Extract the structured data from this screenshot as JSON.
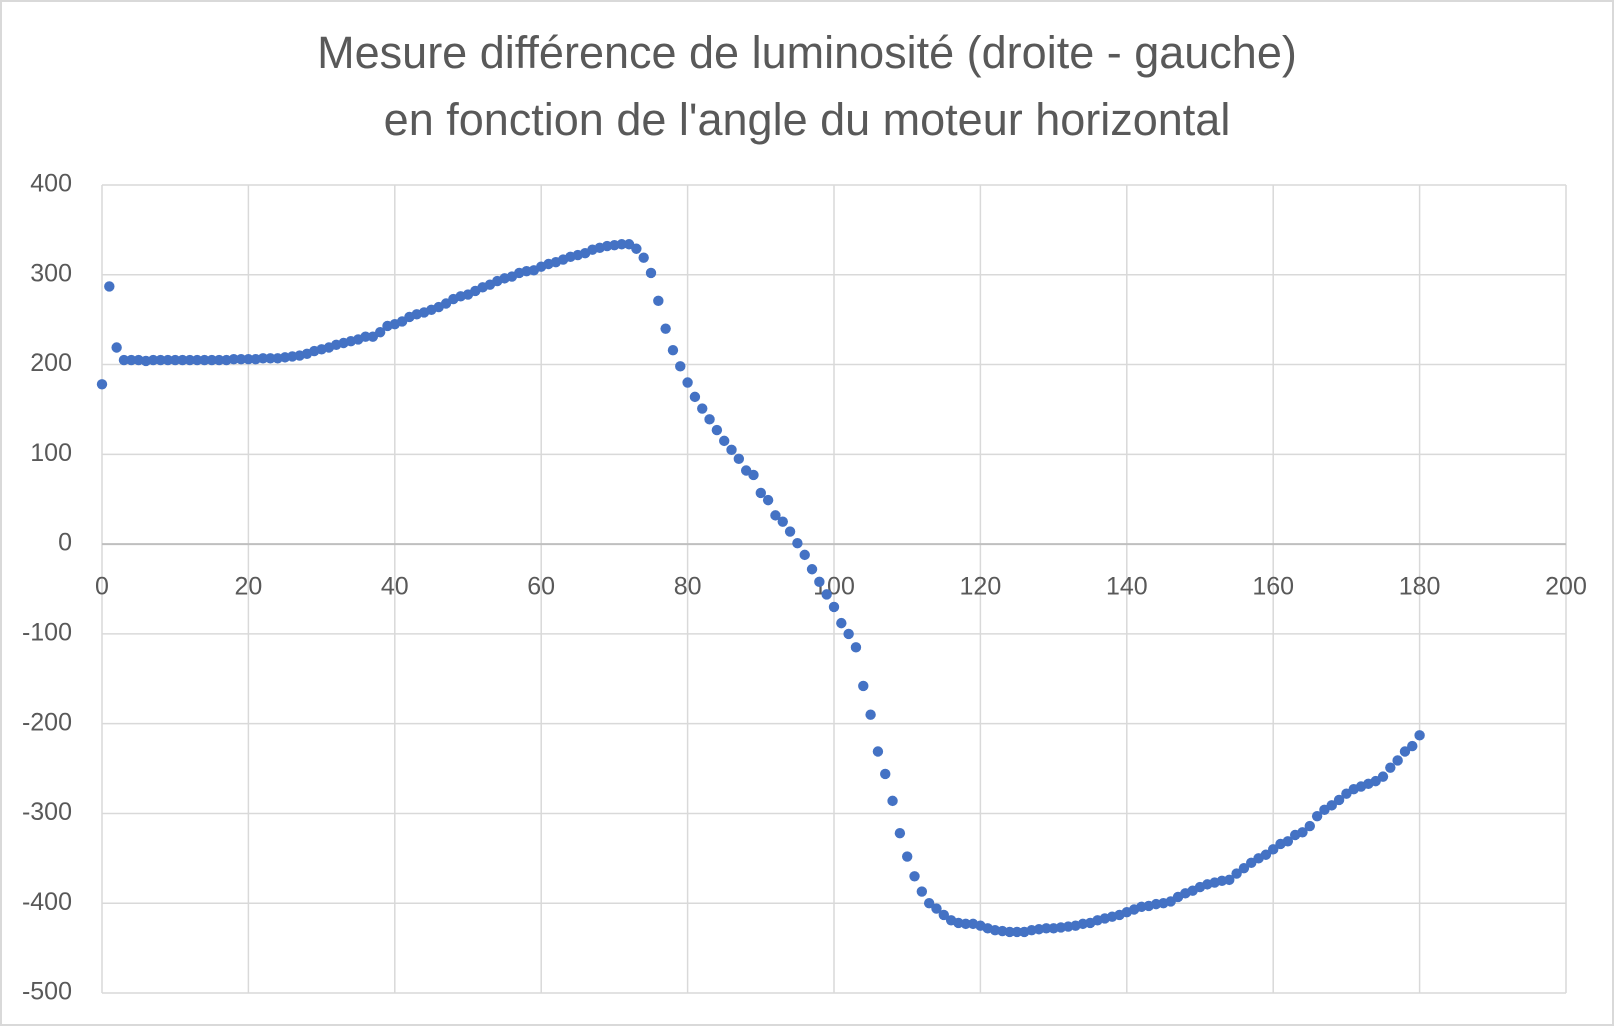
{
  "chart_data": {
    "type": "scatter",
    "title": [
      "Mesure différence de luminosité (droite - gauche)",
      "en fonction de l'angle du moteur horizontal"
    ],
    "color": "#4472c4",
    "grid": true,
    "xlim": [
      0,
      200
    ],
    "xticks": [
      0,
      20,
      40,
      60,
      80,
      100,
      120,
      140,
      160,
      180,
      200
    ],
    "ylim": [
      -500,
      400
    ],
    "yticks": [
      -500,
      -400,
      -300,
      -200,
      -100,
      0,
      100,
      200,
      300,
      400
    ],
    "x": [
      0,
      1,
      2,
      3,
      4,
      5,
      6,
      7,
      8,
      9,
      10,
      11,
      12,
      13,
      14,
      15,
      16,
      17,
      18,
      19,
      20,
      21,
      22,
      23,
      24,
      25,
      26,
      27,
      28,
      29,
      30,
      31,
      32,
      33,
      34,
      35,
      36,
      37,
      38,
      39,
      40,
      41,
      42,
      43,
      44,
      45,
      46,
      47,
      48,
      49,
      50,
      51,
      52,
      53,
      54,
      55,
      56,
      57,
      58,
      59,
      60,
      61,
      62,
      63,
      64,
      65,
      66,
      67,
      68,
      69,
      70,
      71,
      72,
      73,
      74,
      75,
      76,
      77,
      78,
      79,
      80,
      81,
      82,
      83,
      84,
      85,
      86,
      87,
      88,
      89,
      90,
      91,
      92,
      93,
      94,
      95,
      96,
      97,
      98,
      99,
      100,
      101,
      102,
      103,
      104,
      105,
      106,
      107,
      108,
      109,
      110,
      111,
      112,
      113,
      114,
      115,
      116,
      117,
      118,
      119,
      120,
      121,
      122,
      123,
      124,
      125,
      126,
      127,
      128,
      129,
      130,
      131,
      132,
      133,
      134,
      135,
      136,
      137,
      138,
      139,
      140,
      141,
      142,
      143,
      144,
      145,
      146,
      147,
      148,
      149,
      150,
      151,
      152,
      153,
      154,
      155,
      156,
      157,
      158,
      159,
      160,
      161,
      162,
      163,
      164,
      165,
      166,
      167,
      168,
      169,
      170,
      171,
      172,
      173,
      174,
      175,
      176,
      177,
      178,
      179,
      180
    ],
    "values": [
      178,
      287,
      219,
      205,
      205,
      205,
      204,
      205,
      205,
      205,
      205,
      205,
      205,
      205,
      205,
      205,
      205,
      205,
      206,
      206,
      206,
      206,
      207,
      207,
      207,
      208,
      209,
      210,
      212,
      215,
      217,
      219,
      222,
      224,
      226,
      228,
      231,
      231,
      236,
      243,
      245,
      248,
      253,
      256,
      258,
      261,
      264,
      268,
      273,
      276,
      278,
      282,
      286,
      289,
      293,
      296,
      298,
      302,
      304,
      305,
      309,
      312,
      314,
      317,
      320,
      322,
      324,
      328,
      330,
      332,
      333,
      334,
      334,
      329,
      319,
      302,
      271,
      240,
      216,
      198,
      180,
      164,
      151,
      139,
      127,
      115,
      105,
      95,
      82,
      77,
      57,
      49,
      32,
      25,
      14,
      1,
      -12,
      -28,
      -42,
      -56,
      -70,
      -88,
      -100,
      -115,
      -158,
      -190,
      -231,
      -256,
      -286,
      -322,
      -348,
      -370,
      -387,
      -400,
      -406,
      -413,
      -419,
      -422,
      -423,
      -423,
      -425,
      -428,
      -430,
      -431,
      -432,
      -432,
      -432,
      -430,
      -429,
      -428,
      -428,
      -427,
      -426,
      -425,
      -423,
      -422,
      -419,
      -417,
      -415,
      -413,
      -410,
      -407,
      -404,
      -403,
      -401,
      -400,
      -398,
      -393,
      -389,
      -386,
      -382,
      -379,
      -377,
      -375,
      -374,
      -367,
      -361,
      -355,
      -350,
      -346,
      -340,
      -334,
      -331,
      -324,
      -321,
      -314,
      -303,
      -296,
      -291,
      -285,
      -278,
      -273,
      -270,
      -267,
      -264,
      -259,
      -249,
      -241,
      -231,
      -225,
      -213
    ]
  }
}
